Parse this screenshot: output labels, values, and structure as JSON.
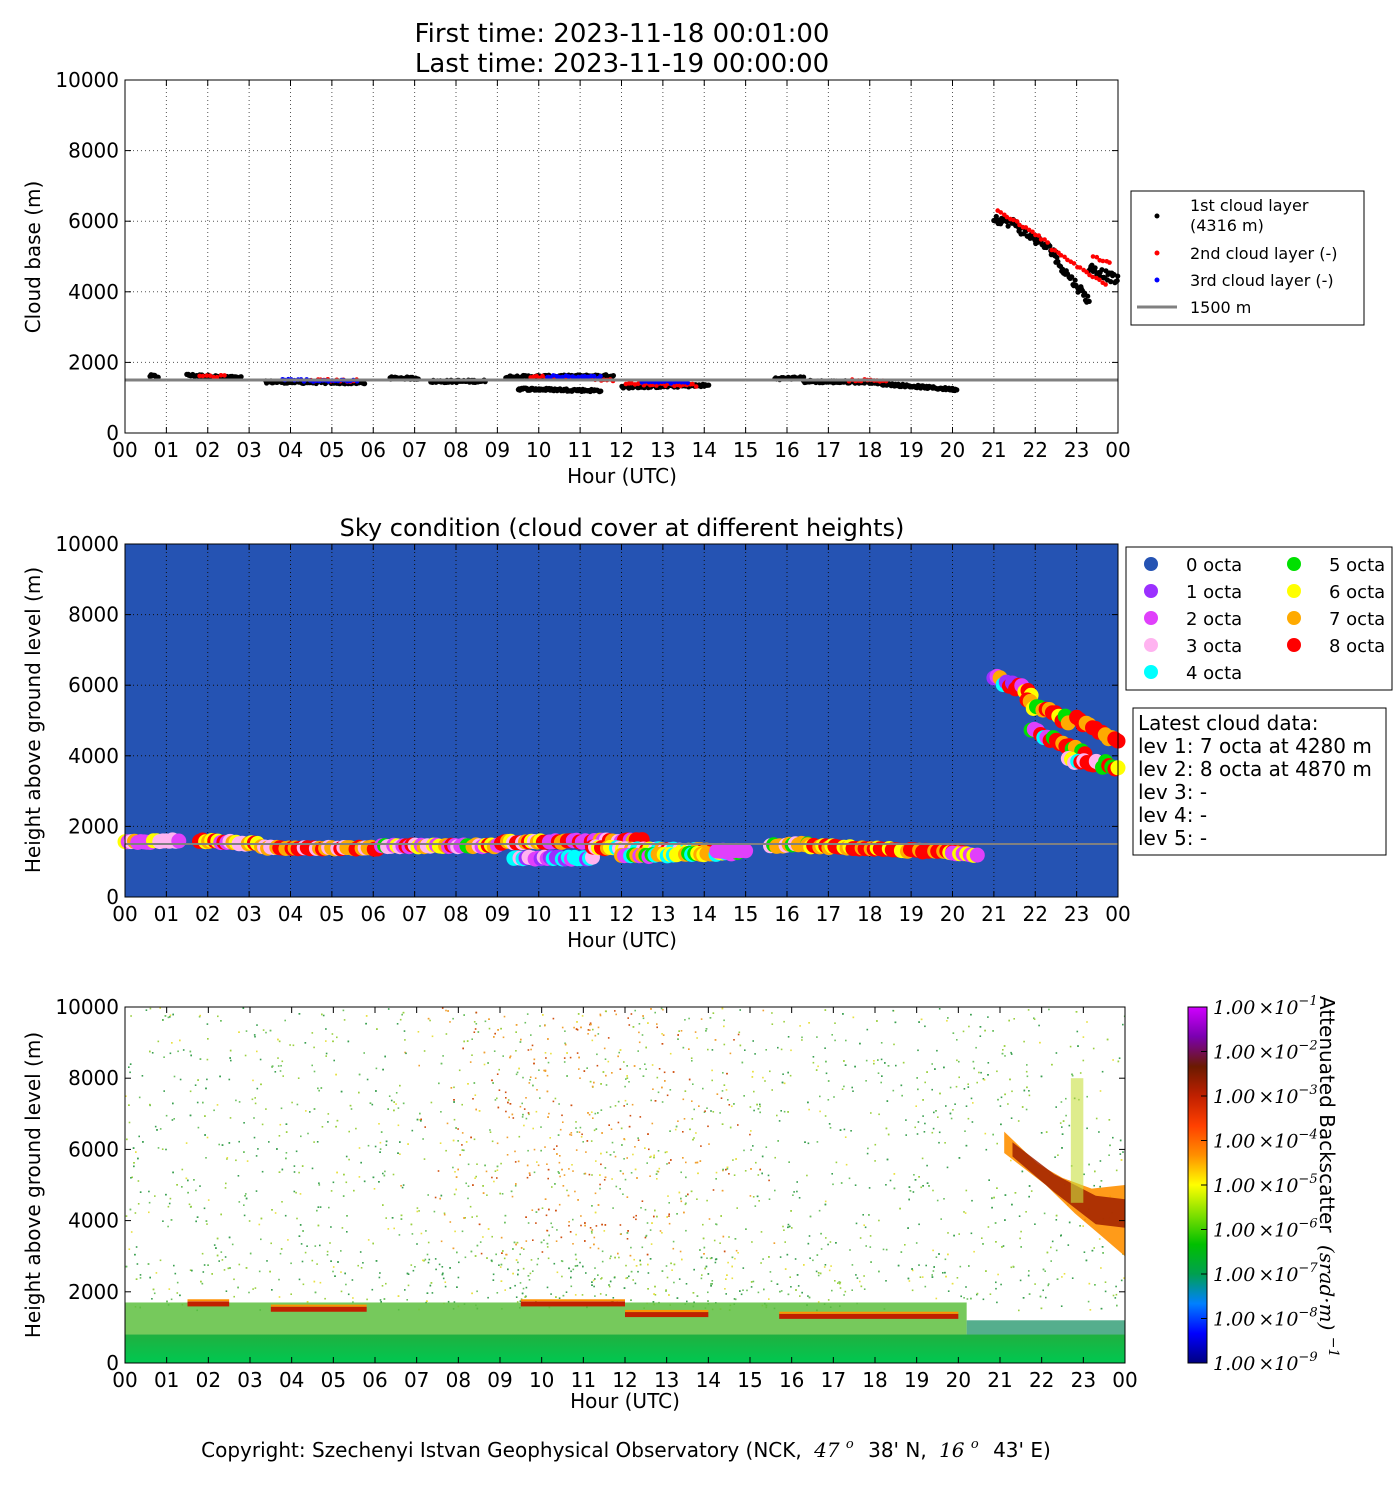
{
  "header": {
    "first_time": "First time: 2023-11-18 00:01:00",
    "last_time": "Last time: 2023-11-19 00:00:00"
  },
  "footer": {
    "copyright_prefix": "Copyright: Szechenyi Istvan Geophysical Observatory (NCK,",
    "lat_deg": "47",
    "lat_sup": "o",
    "lat_rest": "38' N,",
    "lon_deg": "16",
    "lon_sup": "o",
    "lon_rest": "43' E)"
  },
  "colors": {
    "layer1": "#000000",
    "layer2": "#ff0000",
    "layer3": "#0000ff",
    "ref_line": "#808080",
    "sky_bg": "#2553b3"
  },
  "chart_data": [
    {
      "type": "scatter",
      "title": "",
      "xlabel": "Hour (UTC)",
      "ylabel": "Cloud base (m)",
      "xlim": [
        0,
        24
      ],
      "ylim": [
        0,
        10000
      ],
      "x_ticks": [
        "00",
        "01",
        "02",
        "03",
        "04",
        "05",
        "06",
        "07",
        "08",
        "09",
        "10",
        "11",
        "12",
        "13",
        "14",
        "15",
        "16",
        "17",
        "18",
        "19",
        "20",
        "21",
        "22",
        "23",
        "00"
      ],
      "y_ticks": [
        "0",
        "2000",
        "4000",
        "6000",
        "8000",
        "10000"
      ],
      "grid": true,
      "legend_position": "right",
      "reference_line": {
        "y": 1500,
        "label": "1500 m"
      },
      "series": [
        {
          "name": "1st cloud layer",
          "name_line2": "(4316 m)",
          "color": "#000000",
          "segments": [
            {
              "x0": 0.6,
              "x1": 0.8,
              "y0": 1620,
              "y1": 1600
            },
            {
              "x0": 1.5,
              "x1": 2.8,
              "y0": 1640,
              "y1": 1560
            },
            {
              "x0": 3.4,
              "x1": 5.8,
              "y0": 1450,
              "y1": 1420
            },
            {
              "x0": 6.4,
              "x1": 7.1,
              "y0": 1560,
              "y1": 1550
            },
            {
              "x0": 7.4,
              "x1": 8.7,
              "y0": 1460,
              "y1": 1470
            },
            {
              "x0": 9.2,
              "x1": 11.8,
              "y0": 1590,
              "y1": 1620
            },
            {
              "x0": 9.5,
              "x1": 11.5,
              "y0": 1250,
              "y1": 1200
            },
            {
              "x0": 12.0,
              "x1": 14.1,
              "y0": 1300,
              "y1": 1350
            },
            {
              "x0": 15.7,
              "x1": 16.4,
              "y0": 1540,
              "y1": 1560
            },
            {
              "x0": 16.4,
              "x1": 18.2,
              "y0": 1460,
              "y1": 1440
            },
            {
              "x0": 18.2,
              "x1": 20.1,
              "y0": 1400,
              "y1": 1230
            },
            {
              "x0": 21.0,
              "x1": 21.6,
              "y0": 6100,
              "y1": 5900
            },
            {
              "x0": 21.6,
              "x1": 22.5,
              "y0": 5800,
              "y1": 5100
            },
            {
              "x0": 22.5,
              "x1": 23.3,
              "y0": 4900,
              "y1": 3750
            },
            {
              "x0": 23.3,
              "x1": 24.0,
              "y0": 4700,
              "y1": 4316
            }
          ]
        },
        {
          "name": "2nd cloud layer (-)",
          "color": "#ff0000",
          "segments": [
            {
              "x0": 1.8,
              "x1": 2.4,
              "y0": 1620,
              "y1": 1600
            },
            {
              "x0": 4.5,
              "x1": 5.6,
              "y0": 1500,
              "y1": 1480
            },
            {
              "x0": 9.8,
              "x1": 11.8,
              "y0": 1600,
              "y1": 1500
            },
            {
              "x0": 12.1,
              "x1": 13.8,
              "y0": 1400,
              "y1": 1350
            },
            {
              "x0": 17.5,
              "x1": 18.4,
              "y0": 1500,
              "y1": 1480
            },
            {
              "x0": 21.1,
              "x1": 22.3,
              "y0": 6300,
              "y1": 5400
            },
            {
              "x0": 22.4,
              "x1": 23.7,
              "y0": 5200,
              "y1": 4200
            },
            {
              "x0": 23.4,
              "x1": 23.8,
              "y0": 5000,
              "y1": 4800
            }
          ]
        },
        {
          "name": "3rd cloud layer (-)",
          "color": "#0000ff",
          "segments": [
            {
              "x0": 3.8,
              "x1": 5.6,
              "y0": 1500,
              "y1": 1480
            },
            {
              "x0": 10.2,
              "x1": 11.5,
              "y0": 1600,
              "y1": 1580
            },
            {
              "x0": 12.5,
              "x1": 13.6,
              "y0": 1450,
              "y1": 1420
            }
          ]
        }
      ]
    },
    {
      "type": "scatter",
      "title": "Sky condition (cloud cover at different heights)",
      "xlabel": "Hour (UTC)",
      "ylabel": "Height above ground level (m)",
      "xlim": [
        0,
        24
      ],
      "ylim": [
        0,
        10000
      ],
      "x_ticks": [
        "00",
        "01",
        "02",
        "03",
        "04",
        "05",
        "06",
        "07",
        "08",
        "09",
        "10",
        "11",
        "12",
        "13",
        "14",
        "15",
        "16",
        "17",
        "18",
        "19",
        "20",
        "21",
        "22",
        "23",
        "00"
      ],
      "y_ticks": [
        "0",
        "2000",
        "4000",
        "6000",
        "8000",
        "10000"
      ],
      "grid": true,
      "legend_position": "right",
      "reference_line": {
        "y": 1500
      },
      "octa_legend": [
        {
          "label": "0 octa",
          "color": "#2553b3"
        },
        {
          "label": "1 octa",
          "color": "#9b30ff"
        },
        {
          "label": "2 octa",
          "color": "#e040fb"
        },
        {
          "label": "3 octa",
          "color": "#ffb3f0"
        },
        {
          "label": "4 octa",
          "color": "#00ffff"
        },
        {
          "label": "5 octa",
          "color": "#00e000"
        },
        {
          "label": "6 octa",
          "color": "#ffff00"
        },
        {
          "label": "7 octa",
          "color": "#ffaa00"
        },
        {
          "label": "8 octa",
          "color": "#ff0000"
        }
      ],
      "latest": {
        "title": "Latest cloud data:",
        "lines": [
          "lev 1: 7 octa at 4280 m",
          "lev 2: 8 octa at 4870 m",
          "lev 3: -",
          "lev 4: -",
          "lev 5: -"
        ]
      },
      "segments": [
        {
          "x0": 0.0,
          "x1": 1.3,
          "y0": 1550,
          "y1": 1600,
          "octas": [
            3,
            6,
            2,
            7
          ]
        },
        {
          "x0": 1.8,
          "x1": 3.2,
          "y0": 1600,
          "y1": 1500,
          "octas": [
            6,
            7,
            8,
            2,
            3
          ]
        },
        {
          "x0": 3.3,
          "x1": 6.1,
          "y0": 1400,
          "y1": 1380,
          "octas": [
            8,
            8,
            8,
            7,
            3
          ]
        },
        {
          "x0": 6.2,
          "x1": 9.0,
          "y0": 1450,
          "y1": 1450,
          "octas": [
            6,
            3,
            8,
            5,
            7,
            2
          ]
        },
        {
          "x0": 9.1,
          "x1": 12.5,
          "y0": 1550,
          "y1": 1600,
          "octas": [
            2,
            6,
            7,
            8,
            8,
            3
          ]
        },
        {
          "x0": 9.4,
          "x1": 11.3,
          "y0": 1100,
          "y1": 1100,
          "octas": [
            1,
            4,
            3,
            2,
            4
          ]
        },
        {
          "x0": 11.3,
          "x1": 14.2,
          "y0": 1400,
          "y1": 1300,
          "octas": [
            8,
            7,
            4,
            8,
            6,
            3
          ]
        },
        {
          "x0": 12.0,
          "x1": 14.8,
          "y0": 1150,
          "y1": 1250,
          "octas": [
            6,
            7,
            5,
            4,
            2
          ]
        },
        {
          "x0": 14.3,
          "x1": 15.0,
          "y0": 1300,
          "y1": 1300,
          "octas": [
            2,
            2
          ]
        },
        {
          "x0": 15.6,
          "x1": 16.5,
          "y0": 1450,
          "y1": 1500,
          "octas": [
            3,
            7,
            5
          ]
        },
        {
          "x0": 16.5,
          "x1": 20.3,
          "y0": 1450,
          "y1": 1250,
          "octas": [
            8,
            8,
            8,
            8,
            7,
            6
          ]
        },
        {
          "x0": 20.0,
          "x1": 20.6,
          "y0": 1250,
          "y1": 1200,
          "octas": [
            6,
            2
          ]
        },
        {
          "x0": 21.0,
          "x1": 21.9,
          "y0": 6200,
          "y1": 5800,
          "octas": [
            2,
            1,
            7,
            6,
            4,
            8
          ]
        },
        {
          "x0": 21.8,
          "x1": 22.8,
          "y0": 5500,
          "y1": 5000,
          "octas": [
            5,
            6,
            8,
            8,
            8,
            7
          ]
        },
        {
          "x0": 21.9,
          "x1": 23.2,
          "y0": 4700,
          "y1": 4100,
          "octas": [
            2,
            4,
            7,
            5,
            8
          ]
        },
        {
          "x0": 23.0,
          "x1": 24.0,
          "y0": 5000,
          "y1": 4400,
          "octas": [
            8,
            8,
            7,
            8
          ]
        },
        {
          "x0": 22.8,
          "x1": 24.0,
          "y0": 3900,
          "y1": 3700,
          "octas": [
            5,
            6,
            8,
            3,
            4
          ]
        }
      ]
    },
    {
      "type": "heatmap",
      "title": "",
      "xlabel": "Hour (UTC)",
      "ylabel": "Height above ground level (m)",
      "xlim": [
        0,
        24
      ],
      "ylim": [
        0,
        10000
      ],
      "x_ticks": [
        "00",
        "01",
        "02",
        "03",
        "04",
        "05",
        "06",
        "07",
        "08",
        "09",
        "10",
        "11",
        "12",
        "13",
        "14",
        "15",
        "16",
        "17",
        "18",
        "19",
        "20",
        "21",
        "22",
        "23",
        "00"
      ],
      "y_ticks": [
        "0",
        "2000",
        "4000",
        "6000",
        "8000",
        "10000"
      ],
      "colorbar": {
        "label_prefix": "Attenuated Backscatter",
        "label_math": "(srad·m)",
        "label_exp": "−1",
        "mantissa": "1.00",
        "times": "×10",
        "exponents": [
          "−1",
          "−2",
          "−3",
          "−4",
          "−5",
          "−6",
          "−7",
          "−8",
          "−9"
        ],
        "colors": [
          "#000080",
          "#0000ff",
          "#0080ff",
          "#00a050",
          "#00c000",
          "#80e000",
          "#ffff00",
          "#ff9000",
          "#ff4000",
          "#c02000",
          "#6b1a00",
          "#7a00b0",
          "#d000ff"
        ]
      },
      "features": [
        {
          "kind": "surface_green",
          "x0": 0,
          "x1": 24,
          "y_top": 800
        },
        {
          "kind": "boundary_layer",
          "x0": 0,
          "x1": 20.2,
          "y_top": 1700
        },
        {
          "kind": "cloud_line",
          "x0": 1.5,
          "x1": 2.5,
          "y": 1650
        },
        {
          "kind": "cloud_line",
          "x0": 3.5,
          "x1": 5.8,
          "y": 1500
        },
        {
          "kind": "cloud_line",
          "x0": 9.5,
          "x1": 12.0,
          "y": 1650
        },
        {
          "kind": "cloud_line",
          "x0": 12.0,
          "x1": 14.0,
          "y": 1350
        },
        {
          "kind": "cloud_line",
          "x0": 15.7,
          "x1": 20.0,
          "y": 1300
        },
        {
          "kind": "high_cloud",
          "x0": 21.1,
          "x1": 24.0,
          "y_top": 6500,
          "y_bottom": 3000
        }
      ]
    }
  ]
}
